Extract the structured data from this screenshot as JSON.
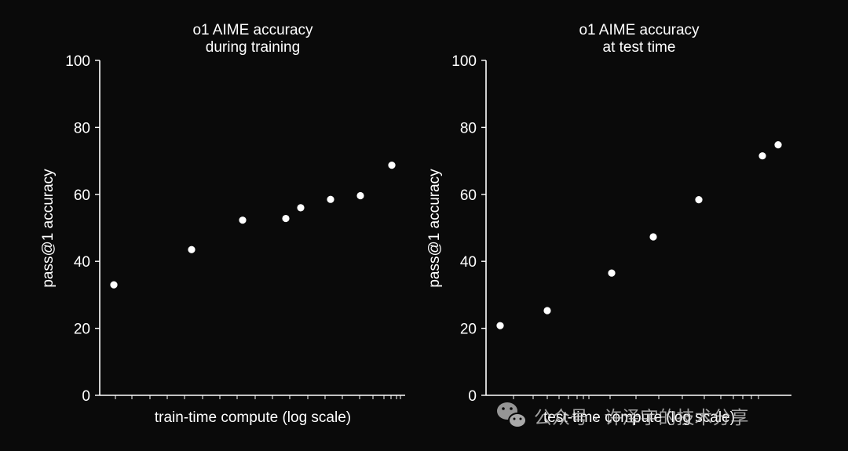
{
  "colors": {
    "background": "#0a0a0a",
    "foreground": "#ffffff",
    "watermark": "#bdbdbd"
  },
  "chart_data": [
    {
      "type": "scatter",
      "title": [
        "o1 AIME accuracy",
        "during training"
      ],
      "xlabel": "train-time compute (log scale)",
      "ylabel": "pass@1 accuracy",
      "xscale": "log",
      "x_tick_labels": "none",
      "yticks": [
        0,
        20,
        40,
        60,
        80,
        100
      ],
      "ylim": [
        0,
        100
      ],
      "grid": false,
      "legend": "none",
      "series": [
        {
          "y": [
            33,
            43.5,
            52.3,
            52.8,
            56,
            58.5,
            59.6,
            68.7
          ]
        }
      ]
    },
    {
      "type": "scatter",
      "title": [
        "o1 AIME accuracy",
        "at test time"
      ],
      "xlabel": "test-time compute (log scale)",
      "ylabel": "pass@1 accuracy",
      "xscale": "log",
      "x_tick_labels": "none",
      "yticks": [
        0,
        20,
        40,
        60,
        80,
        100
      ],
      "ylim": [
        0,
        100
      ],
      "grid": false,
      "legend": "none",
      "series": [
        {
          "y": [
            20.8,
            25.3,
            36.5,
            47.3,
            58.4,
            71.5,
            74.8
          ]
        }
      ]
    }
  ],
  "watermark": {
    "icon": "wechat-icon",
    "text": "公众号 · 许泽宇的技术分享"
  }
}
